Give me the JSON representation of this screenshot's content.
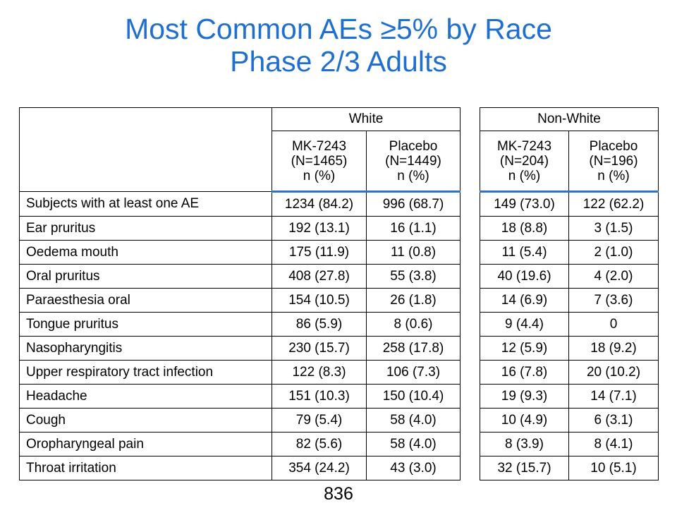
{
  "title": {
    "line1": "Most Common AEs ≥5% by Race",
    "line2": "Phase 2/3 Adults"
  },
  "groups": {
    "white": {
      "label": "White",
      "mk": {
        "name": "MK-7243",
        "n": "(N=1465)",
        "unit": "n (%)"
      },
      "placebo": {
        "name": "Placebo",
        "n": "(N=1449)",
        "unit": "n (%)"
      }
    },
    "nonwhite": {
      "label": "Non-White",
      "mk": {
        "name": "MK-7243",
        "n": "(N=204)",
        "unit": "n (%)"
      },
      "placebo": {
        "name": "Placebo",
        "n": "(N=196)",
        "unit": "n (%)"
      }
    }
  },
  "rows": [
    {
      "label": "Subjects with at least one AE",
      "white_mk": "1234 (84.2)",
      "white_pl": "996 (68.7)",
      "nw_mk": "149 (73.0)",
      "nw_pl": "122 (62.2)"
    },
    {
      "label": "Ear pruritus",
      "white_mk": "192 (13.1)",
      "white_pl": "16 (1.1)",
      "nw_mk": "18 (8.8)",
      "nw_pl": "3 (1.5)"
    },
    {
      "label": "Oedema mouth",
      "white_mk": "175 (11.9)",
      "white_pl": "11 (0.8)",
      "nw_mk": "11 (5.4)",
      "nw_pl": "2 (1.0)"
    },
    {
      "label": "Oral pruritus",
      "white_mk": "408 (27.8)",
      "white_pl": "55 (3.8)",
      "nw_mk": "40 (19.6)",
      "nw_pl": "4 (2.0)"
    },
    {
      "label": "Paraesthesia oral",
      "white_mk": "154 (10.5)",
      "white_pl": "26 (1.8)",
      "nw_mk": "14 (6.9)",
      "nw_pl": "7 (3.6)"
    },
    {
      "label": "Tongue pruritus",
      "white_mk": "86 (5.9)",
      "white_pl": "8 (0.6)",
      "nw_mk": "9 (4.4)",
      "nw_pl": "0"
    },
    {
      "label": "Nasopharyngitis",
      "white_mk": "230 (15.7)",
      "white_pl": "258 (17.8)",
      "nw_mk": "12 (5.9)",
      "nw_pl": "18 (9.2)"
    },
    {
      "label": "Upper respiratory tract infection",
      "white_mk": "122 (8.3)",
      "white_pl": "106 (7.3)",
      "nw_mk": "16 (7.8)",
      "nw_pl": "20 (10.2)"
    },
    {
      "label": "Headache",
      "white_mk": "151 (10.3)",
      "white_pl": "150 (10.4)",
      "nw_mk": "19 (9.3)",
      "nw_pl": "14 (7.1)"
    },
    {
      "label": "Cough",
      "white_mk": "79 (5.4)",
      "white_pl": "58 (4.0)",
      "nw_mk": "10 (4.9)",
      "nw_pl": "6 (3.1)"
    },
    {
      "label": "Oropharyngeal pain",
      "white_mk": "82 (5.6)",
      "white_pl": "58 (4.0)",
      "nw_mk": "8 (3.9)",
      "nw_pl": "8 (4.1)"
    },
    {
      "label": "Throat irritation",
      "white_mk": "354 (24.2)",
      "white_pl": "43 (3.0)",
      "nw_mk": "32 (15.7)",
      "nw_pl": "10 (5.1)"
    }
  ],
  "page_number": "836"
}
